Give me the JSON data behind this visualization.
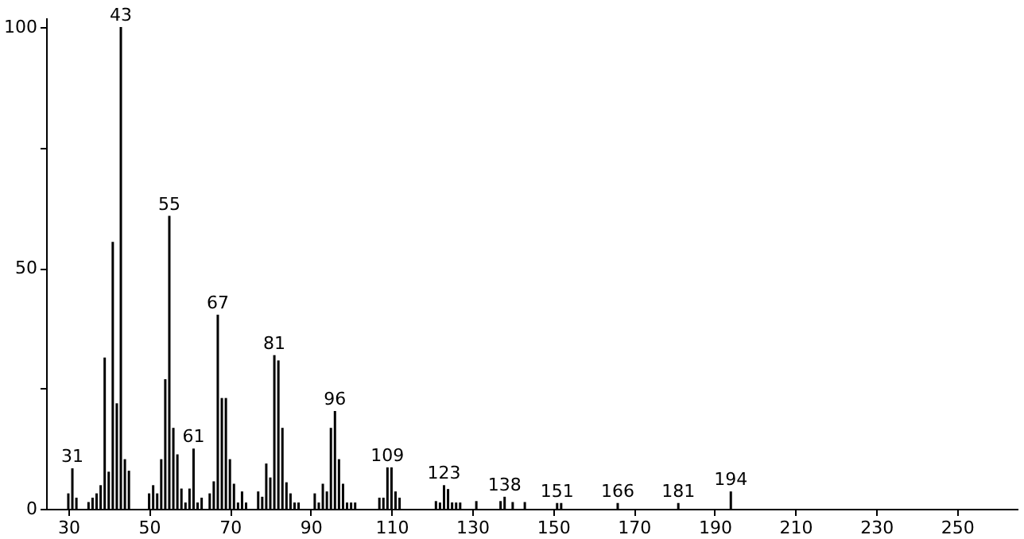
{
  "chart_data": {
    "type": "bar",
    "color": "#000000",
    "x": [
      30,
      31,
      32,
      35,
      36,
      37,
      38,
      39,
      40,
      41,
      42,
      43,
      44,
      45,
      50,
      51,
      52,
      53,
      54,
      55,
      56,
      57,
      58,
      59,
      60,
      61,
      62,
      63,
      65,
      66,
      67,
      68,
      69,
      70,
      71,
      72,
      73,
      74,
      77,
      78,
      79,
      80,
      81,
      82,
      83,
      84,
      85,
      86,
      87,
      91,
      92,
      93,
      94,
      95,
      96,
      97,
      98,
      99,
      100,
      101,
      107,
      108,
      109,
      110,
      111,
      112,
      121,
      122,
      123,
      124,
      125,
      126,
      127,
      131,
      137,
      138,
      140,
      143,
      151,
      152,
      166,
      181,
      194
    ],
    "values": [
      3.2,
      8.4,
      2.3,
      1.4,
      2.3,
      3.2,
      4.9,
      31.4,
      7.7,
      55.4,
      21.9,
      100,
      10.3,
      7.9,
      3.2,
      4.9,
      3.2,
      10.3,
      26.9,
      60.8,
      16.8,
      11.3,
      4.2,
      1.3,
      4.2,
      12.5,
      1.3,
      2.3,
      3.2,
      5.7,
      40.3,
      23,
      23,
      10.3,
      5.2,
      1.3,
      3.6,
      1.3,
      3.6,
      2.5,
      9.4,
      6.5,
      31.9,
      30.8,
      16.8,
      5.5,
      3.2,
      1.3,
      1.3,
      3.2,
      1.3,
      5.2,
      3.6,
      16.8,
      20.3,
      10.3,
      5.2,
      1.3,
      1.3,
      1.3,
      2.3,
      2.3,
      8.6,
      8.6,
      3.6,
      2.3,
      1.6,
      1.3,
      4.9,
      4.1,
      1.3,
      1.3,
      1.3,
      1.6,
      1.6,
      2.5,
      1.4,
      1.4,
      1.2,
      1.2,
      1.2,
      1.2,
      3.6
    ],
    "annotations": [
      {
        "text": "31",
        "x": 31,
        "y": 8.4
      },
      {
        "text": "43",
        "x": 43,
        "y": 100
      },
      {
        "text": "55",
        "x": 55,
        "y": 60.8
      },
      {
        "text": "61",
        "x": 61,
        "y": 12.5
      },
      {
        "text": "67",
        "x": 67,
        "y": 40.3
      },
      {
        "text": "81",
        "x": 81,
        "y": 31.9
      },
      {
        "text": "96",
        "x": 96,
        "y": 20.3
      },
      {
        "text": "109",
        "x": 109,
        "y": 8.6
      },
      {
        "text": "123",
        "x": 123,
        "y": 4.9
      },
      {
        "text": "138",
        "x": 138,
        "y": 2.5
      },
      {
        "text": "151",
        "x": 151,
        "y": 1.2
      },
      {
        "text": "166",
        "x": 166,
        "y": 1.2
      },
      {
        "text": "181",
        "x": 181,
        "y": 1.2
      },
      {
        "text": "194",
        "x": 194,
        "y": 3.6
      }
    ],
    "xlim": [
      24.5,
      265
    ],
    "xticks": [
      30,
      50,
      70,
      90,
      110,
      130,
      150,
      170,
      190,
      210,
      230,
      250
    ],
    "ylim": [
      0,
      102
    ],
    "yticks": [
      0,
      {
        "value": 25,
        "label": null
      },
      50,
      {
        "value": 75,
        "label": null
      },
      100
    ],
    "grid": false
  }
}
